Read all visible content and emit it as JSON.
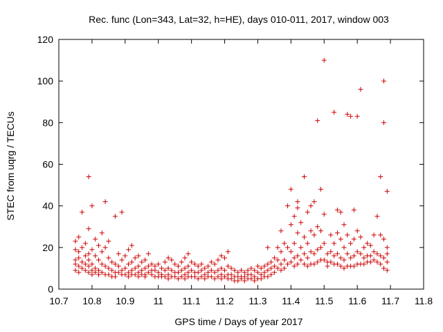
{
  "chart_data": {
    "type": "scatter",
    "title": "Rec. func (Lon=343, Lat=32, h=HE), days 010-011, 2017, window 003",
    "xlabel": "GPS time / Days of year 2017",
    "ylabel": "STEC from uqrg / TECUs",
    "xlim": [
      10.7,
      11.8
    ],
    "ylim": [
      0,
      120
    ],
    "xticks": [
      "10.7",
      "10.8",
      "10.9",
      "11",
      "11.1",
      "11.2",
      "11.3",
      "11.4",
      "11.5",
      "11.6",
      "11.7",
      "11.8"
    ],
    "yticks": [
      "0",
      "20",
      "40",
      "60",
      "80",
      "100",
      "120"
    ],
    "grid": false,
    "legend": "none",
    "marker": "+",
    "color": "#cc0000",
    "points": [
      [
        10.75,
        23
      ],
      [
        10.75,
        19
      ],
      [
        10.75,
        14
      ],
      [
        10.75,
        12
      ],
      [
        10.75,
        9
      ],
      [
        10.76,
        25
      ],
      [
        10.76,
        18
      ],
      [
        10.76,
        15
      ],
      [
        10.76,
        11
      ],
      [
        10.76,
        8
      ],
      [
        10.77,
        37
      ],
      [
        10.77,
        20
      ],
      [
        10.77,
        13
      ],
      [
        10.77,
        10
      ],
      [
        10.78,
        22
      ],
      [
        10.78,
        16
      ],
      [
        10.78,
        12
      ],
      [
        10.78,
        9
      ],
      [
        10.79,
        54
      ],
      [
        10.79,
        29
      ],
      [
        10.79,
        17
      ],
      [
        10.79,
        14
      ],
      [
        10.79,
        11
      ],
      [
        10.79,
        8
      ],
      [
        10.8,
        40
      ],
      [
        10.8,
        19
      ],
      [
        10.8,
        12
      ],
      [
        10.8,
        9
      ],
      [
        10.8,
        7
      ],
      [
        10.81,
        24
      ],
      [
        10.81,
        16
      ],
      [
        10.81,
        10
      ],
      [
        10.81,
        8
      ],
      [
        10.82,
        21
      ],
      [
        10.82,
        14
      ],
      [
        10.82,
        9
      ],
      [
        10.82,
        7
      ],
      [
        10.83,
        27
      ],
      [
        10.83,
        18
      ],
      [
        10.83,
        12
      ],
      [
        10.83,
        8
      ],
      [
        10.84,
        42
      ],
      [
        10.84,
        20
      ],
      [
        10.84,
        11
      ],
      [
        10.84,
        7
      ],
      [
        10.85,
        23
      ],
      [
        10.85,
        15
      ],
      [
        10.85,
        10
      ],
      [
        10.85,
        7
      ],
      [
        10.86,
        13
      ],
      [
        10.86,
        9
      ],
      [
        10.86,
        6
      ],
      [
        10.87,
        35
      ],
      [
        10.87,
        12
      ],
      [
        10.87,
        8
      ],
      [
        10.87,
        6
      ],
      [
        10.88,
        17
      ],
      [
        10.88,
        11
      ],
      [
        10.88,
        8
      ],
      [
        10.89,
        37
      ],
      [
        10.89,
        14
      ],
      [
        10.89,
        9
      ],
      [
        10.89,
        7
      ],
      [
        10.9,
        16
      ],
      [
        10.9,
        10
      ],
      [
        10.9,
        7
      ],
      [
        10.91,
        19
      ],
      [
        10.91,
        12
      ],
      [
        10.91,
        8
      ],
      [
        10.91,
        6
      ],
      [
        10.92,
        21
      ],
      [
        10.92,
        13
      ],
      [
        10.92,
        9
      ],
      [
        10.92,
        7
      ],
      [
        10.93,
        15
      ],
      [
        10.93,
        10
      ],
      [
        10.93,
        7
      ],
      [
        10.94,
        16
      ],
      [
        10.94,
        11
      ],
      [
        10.94,
        8
      ],
      [
        10.94,
        6
      ],
      [
        10.95,
        13
      ],
      [
        10.95,
        9
      ],
      [
        10.95,
        7
      ],
      [
        10.96,
        14
      ],
      [
        10.96,
        10
      ],
      [
        10.96,
        7
      ],
      [
        10.96,
        6
      ],
      [
        10.97,
        17
      ],
      [
        10.97,
        11
      ],
      [
        10.97,
        8
      ],
      [
        10.98,
        12
      ],
      [
        10.98,
        9
      ],
      [
        10.98,
        7
      ],
      [
        10.99,
        11
      ],
      [
        10.99,
        9
      ],
      [
        10.99,
        6
      ],
      [
        11.0,
        12
      ],
      [
        11.0,
        8
      ],
      [
        11.0,
        6
      ],
      [
        11.01,
        10
      ],
      [
        11.01,
        7
      ],
      [
        11.01,
        6
      ],
      [
        11.02,
        13
      ],
      [
        11.02,
        9
      ],
      [
        11.02,
        6
      ],
      [
        11.03,
        15
      ],
      [
        11.03,
        10
      ],
      [
        11.03,
        7
      ],
      [
        11.03,
        5
      ],
      [
        11.04,
        14
      ],
      [
        11.04,
        9
      ],
      [
        11.04,
        6
      ],
      [
        11.05,
        12
      ],
      [
        11.05,
        8
      ],
      [
        11.05,
        6
      ],
      [
        11.06,
        11
      ],
      [
        11.06,
        8
      ],
      [
        11.06,
        5
      ],
      [
        11.07,
        13
      ],
      [
        11.07,
        9
      ],
      [
        11.07,
        6
      ],
      [
        11.08,
        15
      ],
      [
        11.08,
        10
      ],
      [
        11.08,
        7
      ],
      [
        11.08,
        5
      ],
      [
        11.09,
        17
      ],
      [
        11.09,
        11
      ],
      [
        11.09,
        8
      ],
      [
        11.09,
        6
      ],
      [
        11.1,
        13
      ],
      [
        11.1,
        9
      ],
      [
        11.1,
        6
      ],
      [
        11.11,
        12
      ],
      [
        11.11,
        8
      ],
      [
        11.11,
        6
      ],
      [
        11.12,
        11
      ],
      [
        11.12,
        8
      ],
      [
        11.12,
        5
      ],
      [
        11.13,
        12
      ],
      [
        11.13,
        9
      ],
      [
        11.13,
        6
      ],
      [
        11.14,
        10
      ],
      [
        11.14,
        7
      ],
      [
        11.14,
        5
      ],
      [
        11.15,
        11
      ],
      [
        11.15,
        8
      ],
      [
        11.15,
        6
      ],
      [
        11.16,
        13
      ],
      [
        11.16,
        9
      ],
      [
        11.16,
        6
      ],
      [
        11.17,
        12
      ],
      [
        11.17,
        8
      ],
      [
        11.17,
        5
      ],
      [
        11.18,
        14
      ],
      [
        11.18,
        9
      ],
      [
        11.18,
        6
      ],
      [
        11.19,
        16
      ],
      [
        11.19,
        10
      ],
      [
        11.19,
        7
      ],
      [
        11.19,
        5
      ],
      [
        11.2,
        15
      ],
      [
        11.2,
        9
      ],
      [
        11.2,
        6
      ],
      [
        11.21,
        18
      ],
      [
        11.21,
        11
      ],
      [
        11.21,
        7
      ],
      [
        11.21,
        5
      ],
      [
        11.22,
        10
      ],
      [
        11.22,
        7
      ],
      [
        11.22,
        5
      ],
      [
        11.23,
        9
      ],
      [
        11.23,
        6
      ],
      [
        11.23,
        4
      ],
      [
        11.24,
        8
      ],
      [
        11.24,
        6
      ],
      [
        11.24,
        4
      ],
      [
        11.25,
        9
      ],
      [
        11.25,
        6
      ],
      [
        11.25,
        5
      ],
      [
        11.26,
        8
      ],
      [
        11.26,
        6
      ],
      [
        11.26,
        4
      ],
      [
        11.27,
        9
      ],
      [
        11.27,
        7
      ],
      [
        11.27,
        5
      ],
      [
        11.28,
        10
      ],
      [
        11.28,
        7
      ],
      [
        11.28,
        5
      ],
      [
        11.29,
        9
      ],
      [
        11.29,
        6
      ],
      [
        11.29,
        4
      ],
      [
        11.3,
        11
      ],
      [
        11.3,
        8
      ],
      [
        11.3,
        5
      ],
      [
        11.31,
        10
      ],
      [
        11.31,
        7
      ],
      [
        11.31,
        5
      ],
      [
        11.32,
        11
      ],
      [
        11.32,
        8
      ],
      [
        11.32,
        6
      ],
      [
        11.33,
        20
      ],
      [
        11.33,
        12
      ],
      [
        11.33,
        9
      ],
      [
        11.33,
        6
      ],
      [
        11.34,
        13
      ],
      [
        11.34,
        10
      ],
      [
        11.34,
        7
      ],
      [
        11.35,
        15
      ],
      [
        11.35,
        11
      ],
      [
        11.35,
        8
      ],
      [
        11.36,
        20
      ],
      [
        11.36,
        14
      ],
      [
        11.36,
        10
      ],
      [
        11.37,
        28
      ],
      [
        11.37,
        18
      ],
      [
        11.37,
        12
      ],
      [
        11.37,
        9
      ],
      [
        11.38,
        22
      ],
      [
        11.38,
        14
      ],
      [
        11.38,
        10
      ],
      [
        11.39,
        40
      ],
      [
        11.39,
        20
      ],
      [
        11.39,
        12
      ],
      [
        11.4,
        48
      ],
      [
        11.4,
        31
      ],
      [
        11.4,
        18
      ],
      [
        11.4,
        13
      ],
      [
        11.41,
        35
      ],
      [
        11.41,
        22
      ],
      [
        11.41,
        15
      ],
      [
        11.41,
        11
      ],
      [
        11.42,
        42
      ],
      [
        11.42,
        39
      ],
      [
        11.42,
        27
      ],
      [
        11.42,
        16
      ],
      [
        11.42,
        12
      ],
      [
        11.43,
        32
      ],
      [
        11.43,
        20
      ],
      [
        11.43,
        14
      ],
      [
        11.44,
        54
      ],
      [
        11.44,
        25
      ],
      [
        11.44,
        17
      ],
      [
        11.44,
        12
      ],
      [
        11.45,
        37
      ],
      [
        11.45,
        22
      ],
      [
        11.45,
        15
      ],
      [
        11.45,
        11
      ],
      [
        11.46,
        40
      ],
      [
        11.46,
        28
      ],
      [
        11.46,
        18
      ],
      [
        11.46,
        12
      ],
      [
        11.47,
        42
      ],
      [
        11.47,
        26
      ],
      [
        11.47,
        17
      ],
      [
        11.47,
        12
      ],
      [
        11.48,
        81
      ],
      [
        11.48,
        30
      ],
      [
        11.48,
        19
      ],
      [
        11.48,
        13
      ],
      [
        11.49,
        48
      ],
      [
        11.49,
        28
      ],
      [
        11.49,
        20
      ],
      [
        11.49,
        14
      ],
      [
        11.5,
        110
      ],
      [
        11.5,
        36
      ],
      [
        11.5,
        22
      ],
      [
        11.5,
        14
      ],
      [
        11.51,
        17
      ],
      [
        11.51,
        13
      ],
      [
        11.51,
        11
      ],
      [
        11.52,
        26
      ],
      [
        11.52,
        18
      ],
      [
        11.52,
        13
      ],
      [
        11.53,
        85
      ],
      [
        11.53,
        22
      ],
      [
        11.53,
        16
      ],
      [
        11.53,
        12
      ],
      [
        11.54,
        38
      ],
      [
        11.54,
        27
      ],
      [
        11.54,
        17
      ],
      [
        11.54,
        12
      ],
      [
        11.55,
        37
      ],
      [
        11.55,
        24
      ],
      [
        11.55,
        15
      ],
      [
        11.55,
        11
      ],
      [
        11.56,
        31
      ],
      [
        11.56,
        20
      ],
      [
        11.56,
        14
      ],
      [
        11.56,
        10
      ],
      [
        11.57,
        84
      ],
      [
        11.57,
        26
      ],
      [
        11.57,
        17
      ],
      [
        11.57,
        11
      ],
      [
        11.58,
        83
      ],
      [
        11.58,
        22
      ],
      [
        11.58,
        15
      ],
      [
        11.58,
        11
      ],
      [
        11.59,
        38
      ],
      [
        11.59,
        24
      ],
      [
        11.59,
        16
      ],
      [
        11.59,
        11
      ],
      [
        11.6,
        83
      ],
      [
        11.6,
        28
      ],
      [
        11.6,
        18
      ],
      [
        11.6,
        12
      ],
      [
        11.61,
        96
      ],
      [
        11.61,
        25
      ],
      [
        11.61,
        17
      ],
      [
        11.61,
        12
      ],
      [
        11.62,
        20
      ],
      [
        11.62,
        15
      ],
      [
        11.62,
        12
      ],
      [
        11.63,
        22
      ],
      [
        11.63,
        16
      ],
      [
        11.63,
        13
      ],
      [
        11.64,
        21
      ],
      [
        11.64,
        16
      ],
      [
        11.64,
        13
      ],
      [
        11.65,
        26
      ],
      [
        11.65,
        18
      ],
      [
        11.65,
        14
      ],
      [
        11.66,
        35
      ],
      [
        11.66,
        17
      ],
      [
        11.66,
        13
      ],
      [
        11.67,
        54
      ],
      [
        11.67,
        26
      ],
      [
        11.67,
        16
      ],
      [
        11.67,
        12
      ],
      [
        11.68,
        100
      ],
      [
        11.68,
        80
      ],
      [
        11.68,
        24
      ],
      [
        11.68,
        15
      ],
      [
        11.68,
        10
      ],
      [
        11.69,
        47
      ],
      [
        11.69,
        20
      ],
      [
        11.69,
        17
      ],
      [
        11.69,
        13
      ],
      [
        11.69,
        9
      ]
    ]
  }
}
